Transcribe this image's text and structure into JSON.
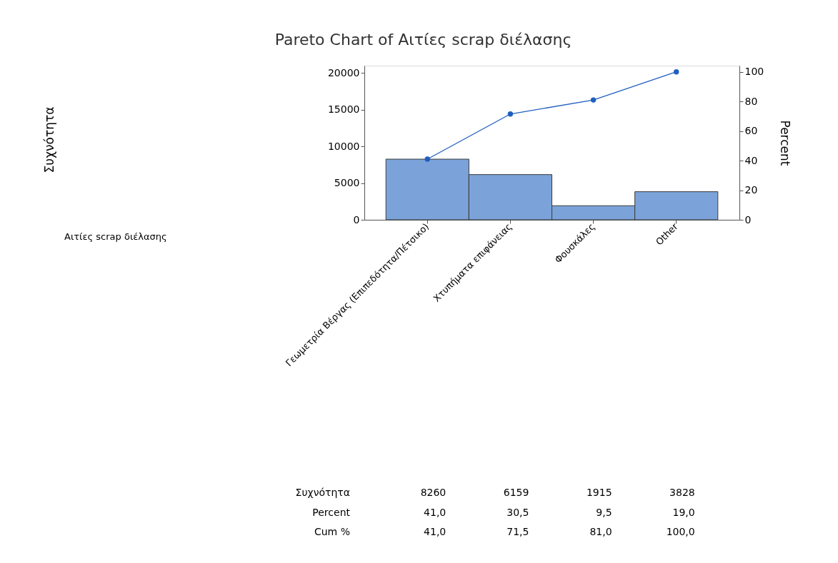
{
  "chart_data": {
    "type": "bar",
    "title": "Pareto Chart of Αιτίες scrap διέλασης",
    "y2label": "Percent",
    "categories": [
      "Γεωμετρία Βέργας (Επιπεδότητα/Πέτσικο)",
      "Χτυπήματα επιφάνειας",
      "Φουσκάλες",
      "Other"
    ],
    "series": [
      {
        "color": "#7ba3d9",
        "values": [
          8260,
          6159,
          1915,
          3828
        ],
        "value_labels": [
          "8260",
          "6159",
          "1915",
          "3828"
        ]
      },
      {
        "type": "line",
        "axis": "y2",
        "color": "#1f5fbf",
        "marker": "circle",
        "values": [
          41.0,
          71.5,
          81.0,
          100.0
        ],
        "value_labels": [
          "41,0",
          "71,5",
          "81,0",
          "100,0"
        ]
      }
    ],
    "annotations": [
      "Αιτίες scrap διέλασης",
      "Συχνότητα",
      "Συχνότητα",
      "Percent",
      "Cum %",
      "41,0",
      "30,5",
      "9,5",
      "19,0"
    ],
    "ylim": [
      0,
      21000
    ],
    "yticks": [
      0,
      5000,
      10000,
      15000,
      20000
    ],
    "y2lim": [
      0,
      104.2
    ],
    "y2ticks": [
      0,
      20,
      40,
      60,
      80,
      100
    ],
    "grid": false
  }
}
